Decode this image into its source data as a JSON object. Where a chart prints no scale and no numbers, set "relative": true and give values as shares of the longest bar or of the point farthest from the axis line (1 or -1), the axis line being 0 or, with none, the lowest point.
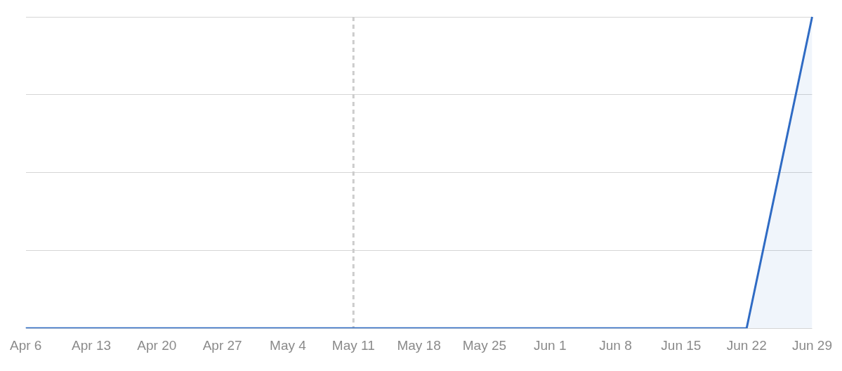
{
  "chart_data": {
    "type": "area",
    "relative": true,
    "categories": [
      "Apr 6",
      "Apr 13",
      "Apr 20",
      "Apr 27",
      "May 4",
      "May 11",
      "May 18",
      "May 25",
      "Jun 1",
      "Jun 8",
      "Jun 15",
      "Jun 22",
      "Jun 29"
    ],
    "series": [
      {
        "color": "#2f6bc4",
        "values": [
          0,
          0,
          0,
          0,
          0,
          0,
          0,
          0,
          0,
          0,
          0,
          0,
          1
        ]
      }
    ],
    "ref_lines": [
      {
        "axis": "x",
        "value": "May 11",
        "color": "#cccccc",
        "line_style": "dashed"
      }
    ],
    "grid": "y",
    "legend": false,
    "tick_labels": "x"
  }
}
